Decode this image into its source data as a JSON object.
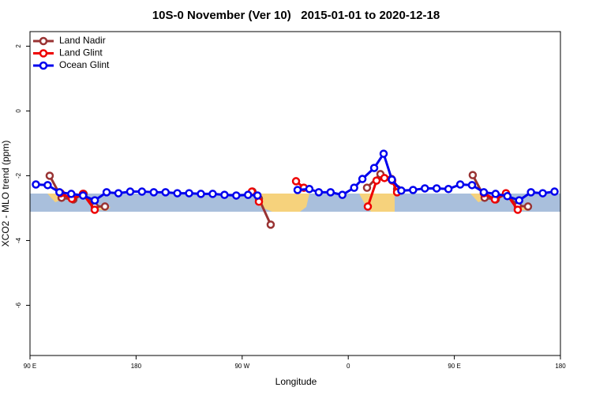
{
  "chart_data": {
    "type": "line",
    "title": "10S-0 November (Ver 10)   2015-01-01 to 2020-12-18",
    "xlabel": "Longitude",
    "ylabel": "XCO2 - MLO trend (ppm)",
    "xlim": [
      90,
      540
    ],
    "ylim": [
      -7.55,
      2.45
    ],
    "xticks": [
      {
        "value": 90,
        "label": "90 E"
      },
      180,
      {
        "value": 270,
        "label": "90 W"
      },
      {
        "value": 360,
        "label": "0"
      },
      {
        "value": 450,
        "label": "90 E"
      },
      {
        "value": 540,
        "label": "180"
      }
    ],
    "yticks": [
      -6,
      -4,
      -2,
      0,
      2
    ],
    "legend": "topleft",
    "series": [
      {
        "name": "Land Nadir",
        "color": "#993333",
        "x": [
          106.7,
          116.8,
          126.8,
          135.5,
          144.9,
          153.6,
          null,
          278.8,
          284.2,
          294.2,
          null,
          375.9,
          387.3,
          396.7,
          401.4,
          null,
          465.6,
          475.7,
          485.1,
          493.8,
          503.8,
          512.5
        ],
        "values": [
          -2.0,
          -2.68,
          -2.73,
          -2.56,
          -2.95,
          -2.95,
          null,
          -2.49,
          -2.71,
          -3.51,
          null,
          -2.37,
          -1.95,
          -2.1,
          -2.41,
          null,
          -1.98,
          -2.68,
          -2.73,
          -2.56,
          -2.93,
          -2.95
        ]
      },
      {
        "name": "Land Glint",
        "color": "#ee0000",
        "x": [
          116.1,
          125.5,
          134.9,
          144.9,
          null,
          278.2,
          284.2,
          null,
          315.7,
          322.3,
          null,
          376.6,
          384.0,
          390.7,
          397.3,
          401.4,
          null,
          475.0,
          484.4,
          493.8,
          503.8
        ],
        "values": [
          -2.54,
          -2.71,
          -2.56,
          -3.05,
          null,
          -2.49,
          -2.8,
          null,
          -2.17,
          -2.37,
          null,
          -2.95,
          -2.15,
          -2.07,
          -2.15,
          -2.51,
          null,
          -2.54,
          -2.73,
          -2.54,
          -3.05
        ]
      },
      {
        "name": "Ocean Glint",
        "color": "#0000ee",
        "x": [
          95,
          105,
          115,
          125,
          135,
          145,
          155,
          165,
          175,
          185,
          195,
          205,
          215,
          225,
          235,
          245,
          255,
          265,
          275,
          283,
          null,
          317,
          327,
          335,
          345,
          355,
          365,
          372,
          382,
          390,
          397,
          405,
          415,
          425,
          435,
          445,
          455,
          465,
          475,
          485,
          495,
          505,
          515,
          525,
          535
        ],
        "values": [
          -2.27,
          -2.29,
          -2.51,
          -2.56,
          -2.61,
          -2.76,
          -2.51,
          -2.54,
          -2.49,
          -2.49,
          -2.51,
          -2.51,
          -2.54,
          -2.54,
          -2.56,
          -2.56,
          -2.59,
          -2.61,
          -2.59,
          -2.61,
          null,
          -2.44,
          -2.41,
          -2.51,
          -2.51,
          -2.59,
          -2.37,
          -2.1,
          -1.76,
          -1.32,
          -2.12,
          -2.46,
          -2.44,
          -2.39,
          -2.39,
          -2.41,
          -2.27,
          -2.29,
          -2.51,
          -2.56,
          -2.63,
          -2.76,
          -2.51,
          -2.54,
          -2.49
        ]
      }
    ]
  }
}
